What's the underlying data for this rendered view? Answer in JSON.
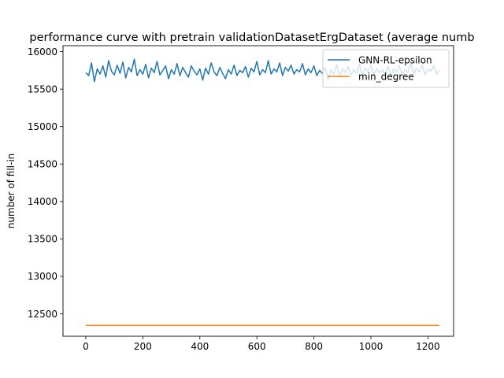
{
  "chart_data": {
    "type": "line",
    "title": "performance curve with pretrain validationDatasetErgDataset (average numb",
    "xlabel": "",
    "ylabel": "number of fill-in",
    "xlim": [
      -80,
      1290
    ],
    "ylim": [
      12200,
      16080
    ],
    "xticks": [
      0,
      200,
      400,
      600,
      800,
      1000,
      1200
    ],
    "yticks": [
      12500,
      13000,
      13500,
      14000,
      14500,
      15000,
      15500,
      16000
    ],
    "xtick_labels": [
      "0",
      "200",
      "400",
      "600",
      "800",
      "1000",
      "1200"
    ],
    "ytick_labels": [
      "12500",
      "13000",
      "13500",
      "14000",
      "14500",
      "15000",
      "15500",
      "16000"
    ],
    "legend_position": "upper-right",
    "grid": false,
    "series": [
      {
        "name": "GNN-RL-epsilon",
        "color": "#1f77b4",
        "x_start": 0,
        "x_step": 10,
        "values": [
          15720,
          15680,
          15850,
          15600,
          15770,
          15700,
          15810,
          15660,
          15880,
          15740,
          15690,
          15820,
          15710,
          15860,
          15650,
          15790,
          15730,
          15900,
          15680,
          15760,
          15700,
          15830,
          15650,
          15780,
          15720,
          15870,
          15690,
          15750,
          15810,
          15640,
          15760,
          15700,
          15840,
          15680,
          15790,
          15720,
          15660,
          15810,
          15740,
          15690,
          15770,
          15620,
          15780,
          15700,
          15850,
          15730,
          15680,
          15790,
          15710,
          15640,
          15760,
          15700,
          15820,
          15680,
          15750,
          15720,
          15800,
          15660,
          15780,
          15730,
          15870,
          15690,
          15760,
          15720,
          15880,
          15700,
          15770,
          15730,
          15850,
          15680,
          15790,
          15740,
          15820,
          15700,
          15760,
          15730,
          15840,
          15690,
          15770,
          15720,
          15810,
          15680,
          15750,
          15710,
          15790,
          15620,
          15760,
          15700,
          15830,
          15680,
          15770,
          15720,
          15800,
          15690,
          15760,
          15710,
          15840,
          15670,
          15780,
          15730,
          15820,
          15690,
          15770,
          15720,
          15760,
          15700,
          15800,
          15680,
          15770,
          15730,
          15810,
          15690,
          15760,
          15720,
          15860,
          15700,
          15780,
          15730,
          15820,
          15690,
          15770,
          15740,
          15810,
          15700,
          15750
        ]
      },
      {
        "name": "min_degree",
        "color": "#ff7f0e",
        "x_start": 0,
        "x_step": 10,
        "values": [
          12345,
          12345,
          12345,
          12345,
          12345,
          12345,
          12345,
          12345,
          12345,
          12345,
          12345,
          12345,
          12345,
          12345,
          12345,
          12345,
          12345,
          12345,
          12345,
          12345,
          12345,
          12345,
          12345,
          12345,
          12345,
          12345,
          12345,
          12345,
          12345,
          12345,
          12345,
          12345,
          12345,
          12345,
          12345,
          12345,
          12345,
          12345,
          12345,
          12345,
          12345,
          12345,
          12345,
          12345,
          12345,
          12345,
          12345,
          12345,
          12345,
          12345,
          12345,
          12345,
          12345,
          12345,
          12345,
          12345,
          12345,
          12345,
          12345,
          12345,
          12345,
          12345,
          12345,
          12345,
          12345,
          12345,
          12345,
          12345,
          12345,
          12345,
          12345,
          12345,
          12345,
          12345,
          12345,
          12345,
          12345,
          12345,
          12345,
          12345,
          12345,
          12345,
          12345,
          12345,
          12345,
          12345,
          12345,
          12345,
          12345,
          12345,
          12345,
          12345,
          12345,
          12345,
          12345,
          12345,
          12345,
          12345,
          12345,
          12345,
          12345,
          12345,
          12345,
          12345,
          12345,
          12345,
          12345,
          12345,
          12345,
          12345,
          12345,
          12345,
          12345,
          12345,
          12345,
          12345,
          12345,
          12345,
          12345,
          12345,
          12345,
          12345,
          12345,
          12345,
          12345
        ]
      }
    ]
  }
}
